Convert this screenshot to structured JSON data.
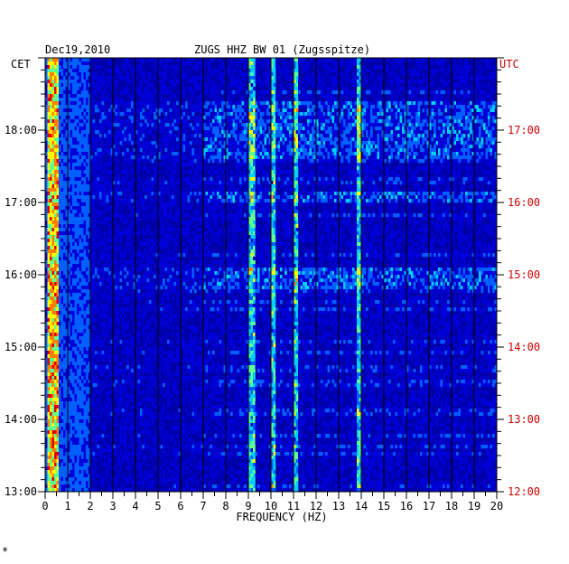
{
  "chart_data": {
    "type": "heatmap",
    "header": {
      "date": "Dec19,2010",
      "station": "ZUGS HHZ BW 01 (Zugsspitze)"
    },
    "left_axis_label": "CET",
    "right_axis_label": "UTC",
    "xlabel": "FREQUENCY (HZ)",
    "x_ticks": [
      "0",
      "1",
      "2",
      "3",
      "4",
      "5",
      "6",
      "7",
      "8",
      "9",
      "10",
      "11",
      "12",
      "13",
      "14",
      "15",
      "16",
      "17",
      "18",
      "19",
      "20"
    ],
    "xlim": [
      0,
      20
    ],
    "y_ticks_left": [
      "18:00",
      "17:00",
      "16:00",
      "15:00",
      "14:00",
      "13:00"
    ],
    "y_ticks_right": [
      "17:00",
      "16:00",
      "15:00",
      "14:00",
      "13:00",
      "12:00"
    ],
    "y_tick_hours_cet": [
      18,
      17,
      16,
      15,
      14,
      13
    ],
    "ylim_cet_hours": [
      13.0,
      19.0
    ],
    "colormap": [
      "#00007a",
      "#0000d8",
      "#0060ff",
      "#00d0ff",
      "#60ff90",
      "#ffff00",
      "#ff8000",
      "#e00000"
    ],
    "colors": {
      "left_axis": "#000000",
      "right_axis": "#cc0000",
      "gridline": "#000000"
    },
    "features": {
      "persistent_band_hz": [
        0.1,
        0.6
      ],
      "energetic_intervals_cet": [
        [
          17.6,
          18.4
        ],
        [
          15.8,
          16.1
        ],
        [
          17.0,
          17.15
        ]
      ],
      "energetic_freq_range_hz": [
        7,
        20
      ],
      "line_peaks_hz": [
        9.2,
        10.1,
        11.1,
        13.9
      ]
    },
    "footer_mark": "*"
  }
}
